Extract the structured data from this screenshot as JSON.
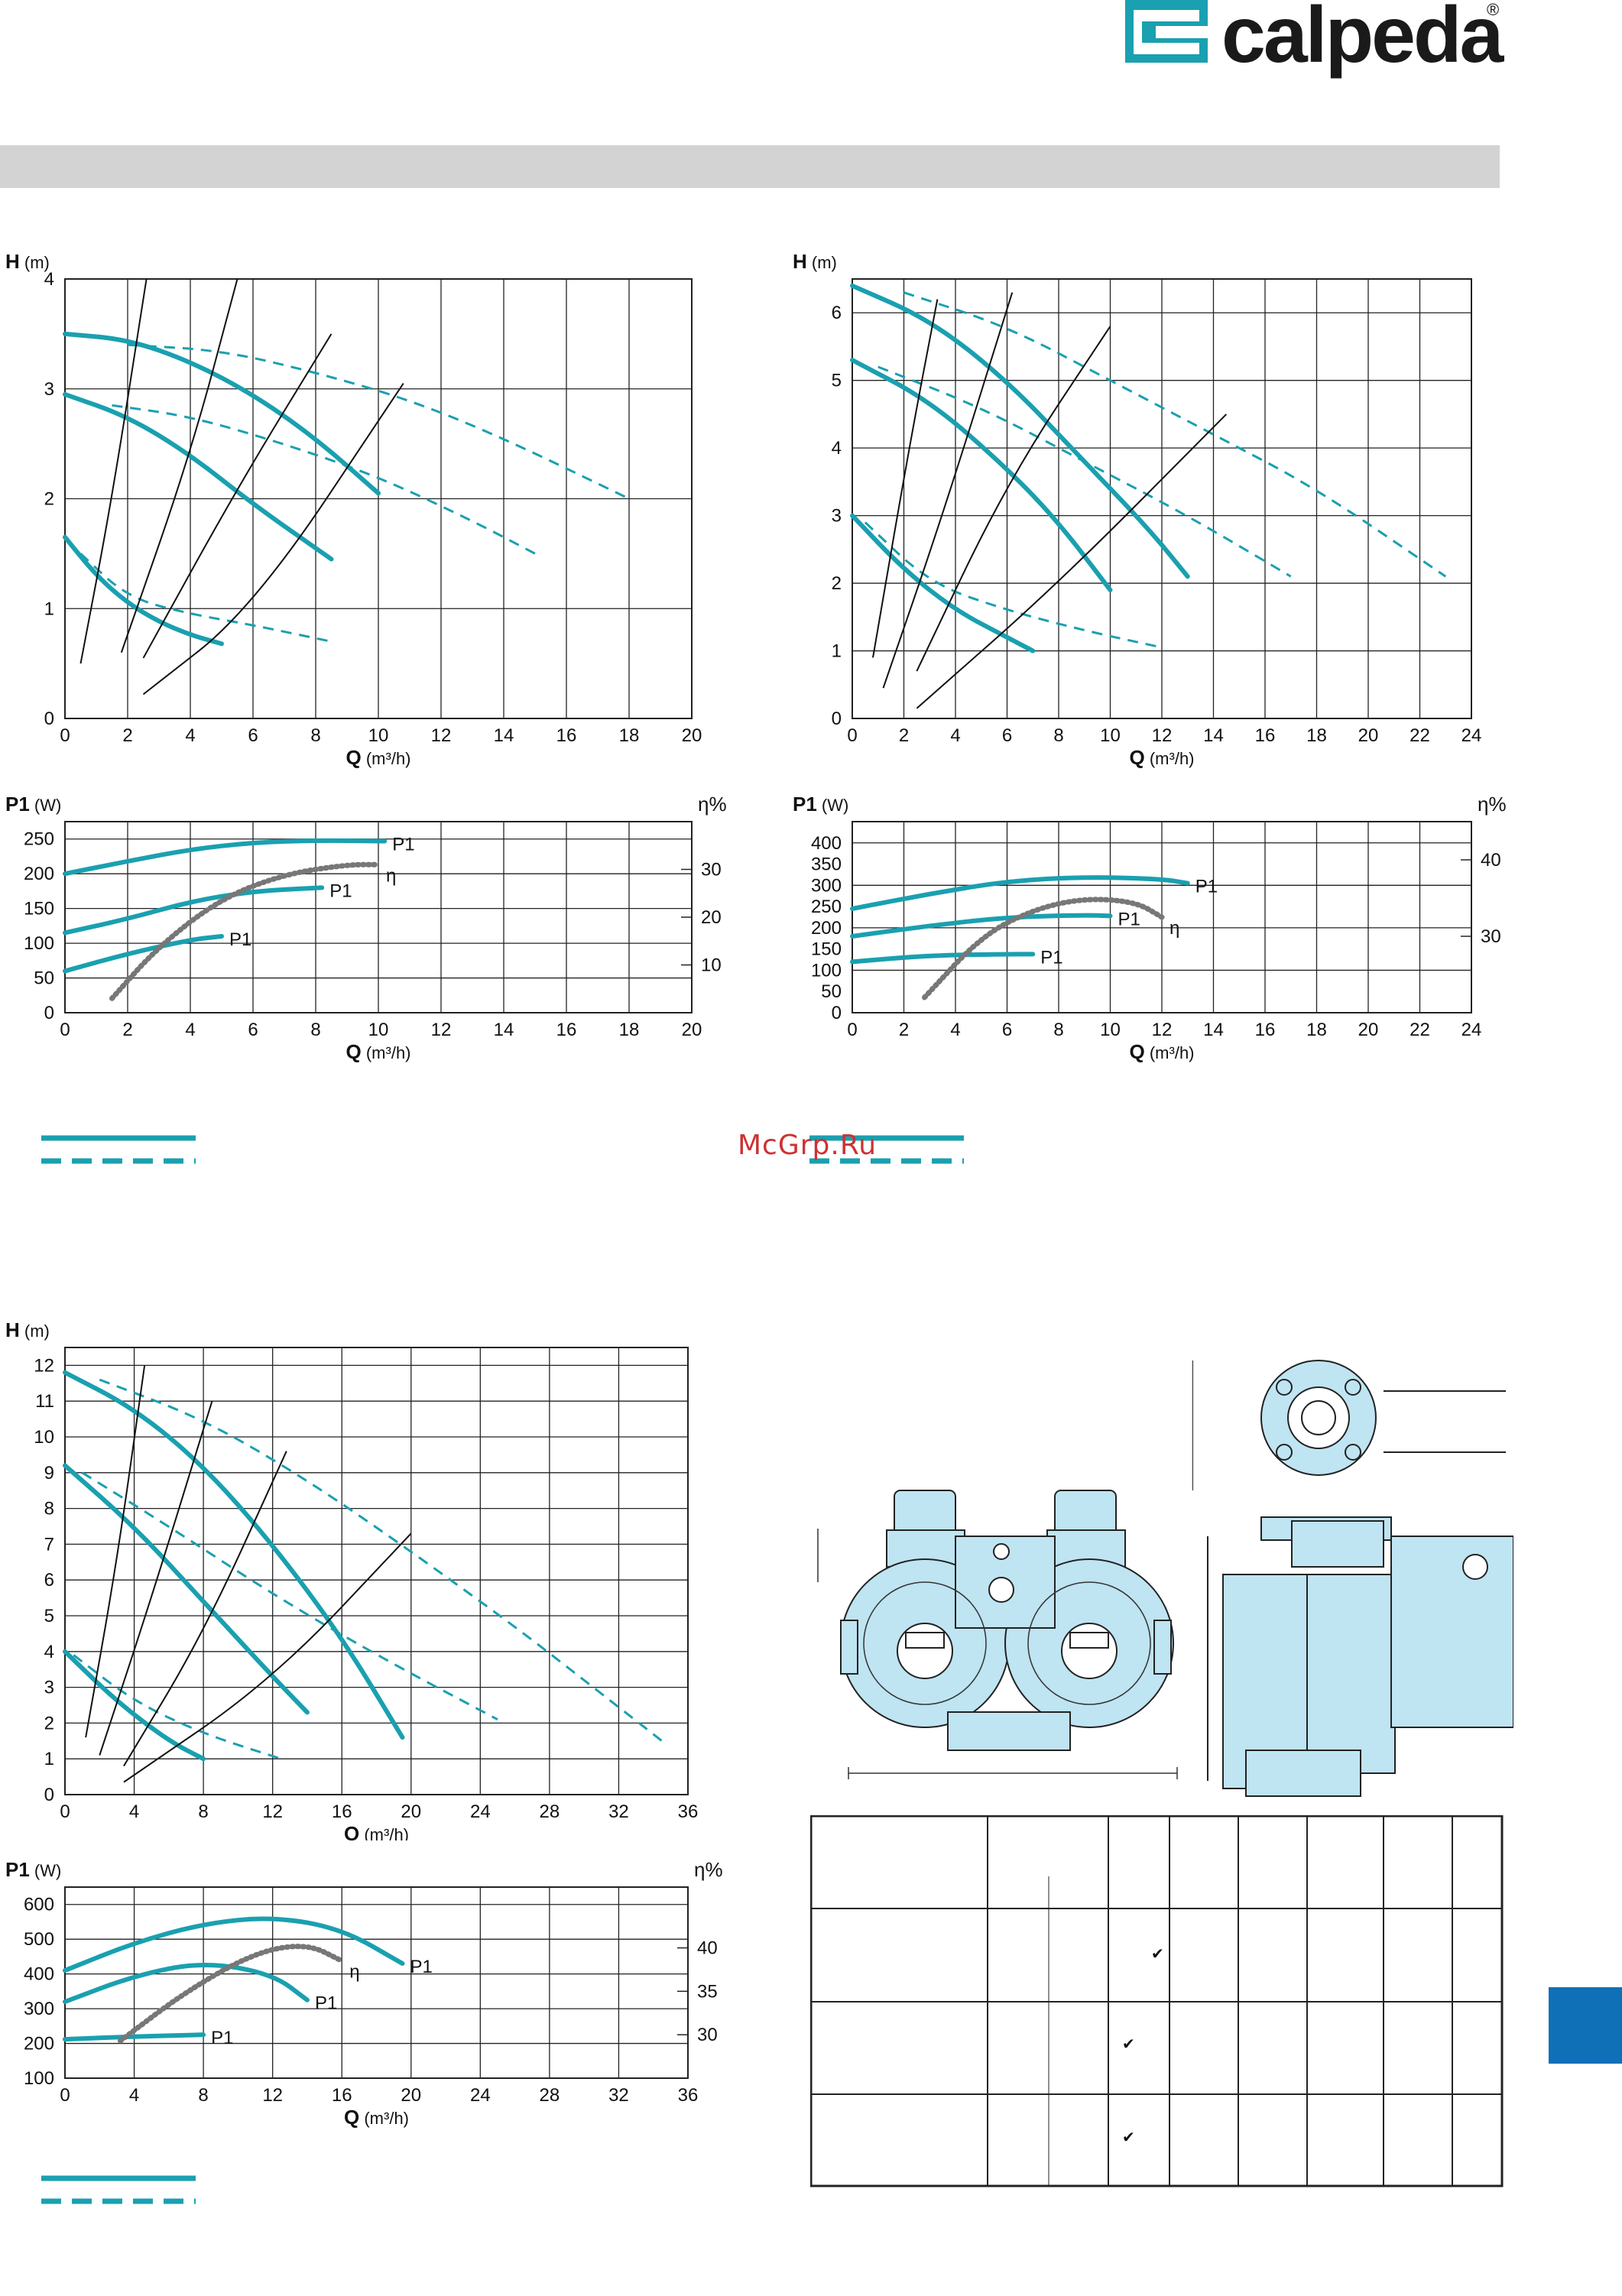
{
  "brand": {
    "name": "calpeda",
    "registered": "®"
  },
  "watermark": "McGrp.Ru",
  "colors": {
    "curve": "#1aa0b0",
    "grid": "#222222",
    "efficiency": "#777777",
    "band": "#d3d3d3",
    "tab": "#0f70b7"
  },
  "chart_data": [
    {
      "type": "line",
      "ylabel_main": "H",
      "ylabel_unit": "(m)",
      "xlabel_main": "Q",
      "xlabel_unit": "(m³/h)",
      "xticks": [
        "0",
        "2",
        "4",
        "6",
        "8",
        "10",
        "12",
        "14",
        "16",
        "18",
        "20"
      ],
      "yticks": [
        "0",
        "1",
        "2",
        "3",
        "4"
      ],
      "xlim": [
        0,
        20
      ],
      "ylim": [
        0,
        4
      ],
      "series": [
        {
          "style": "solid",
          "x": [
            0,
            2,
            4,
            6,
            8.5
          ],
          "y": [
            2.95,
            2.75,
            2.4,
            1.95,
            1.45
          ]
        },
        {
          "style": "solid",
          "x": [
            0,
            2,
            4,
            6,
            8,
            10
          ],
          "y": [
            3.5,
            3.45,
            3.25,
            2.95,
            2.55,
            2.05
          ]
        },
        {
          "style": "solid",
          "x": [
            0,
            1,
            2,
            3,
            4,
            5
          ],
          "y": [
            1.65,
            1.3,
            1.05,
            0.88,
            0.76,
            0.68
          ]
        },
        {
          "style": "dashed",
          "x": [
            1.5,
            4,
            7,
            10,
            13,
            15
          ],
          "y": [
            2.85,
            2.75,
            2.5,
            2.2,
            1.8,
            1.5
          ]
        },
        {
          "style": "dashed",
          "x": [
            2,
            5,
            8,
            11,
            14,
            18
          ],
          "y": [
            3.4,
            3.35,
            3.15,
            2.9,
            2.55,
            2.0
          ]
        },
        {
          "style": "dashed",
          "x": [
            0.5,
            2,
            4,
            6,
            8.5
          ],
          "y": [
            1.5,
            1.1,
            0.95,
            0.85,
            0.7
          ]
        },
        {
          "style": "system",
          "x": [
            0.5,
            1.5,
            2.6
          ],
          "y": [
            0.5,
            2.0,
            4.0
          ]
        },
        {
          "style": "system",
          "x": [
            1.8,
            4,
            5.5
          ],
          "y": [
            0.6,
            2.4,
            4.0
          ]
        },
        {
          "style": "system",
          "x": [
            2.5,
            5.5,
            8.5
          ],
          "y": [
            0.55,
            2.1,
            3.5
          ]
        },
        {
          "style": "system",
          "x": [
            2.5,
            6,
            10.8
          ],
          "y": [
            0.22,
            1.0,
            3.05
          ]
        }
      ]
    },
    {
      "type": "line",
      "ylabel_main": "P1",
      "ylabel_unit": "(W)",
      "y2label": "η%",
      "xlabel_main": "Q",
      "xlabel_unit": "(m³/h)",
      "xticks": [
        "0",
        "2",
        "4",
        "6",
        "8",
        "10",
        "12",
        "14",
        "16",
        "18",
        "20"
      ],
      "yticks": [
        "0",
        "50",
        "100",
        "150",
        "200",
        "250"
      ],
      "y2ticks": [
        "10",
        "20",
        "30"
      ],
      "xlim": [
        0,
        20
      ],
      "ylim": [
        0,
        275
      ],
      "y2lim": [
        0,
        40
      ],
      "series_labels": [
        "P1",
        "P1",
        "P1",
        "η"
      ],
      "series": [
        {
          "style": "solid",
          "label": "P1",
          "x": [
            0,
            2,
            4,
            6,
            8,
            10,
            10.2
          ],
          "y": [
            200,
            218,
            235,
            245,
            248,
            247,
            247
          ]
        },
        {
          "style": "solid",
          "label": "P1",
          "x": [
            0,
            2,
            4,
            6,
            8.2
          ],
          "y": [
            115,
            135,
            160,
            175,
            180
          ]
        },
        {
          "style": "solid",
          "label": "P1",
          "x": [
            0,
            2,
            4,
            5
          ],
          "y": [
            60,
            85,
            105,
            110
          ]
        },
        {
          "style": "dotted",
          "label": "η",
          "axis": "y2",
          "x": [
            1.5,
            3,
            5,
            7,
            9,
            10
          ],
          "y": [
            3,
            14,
            24,
            29,
            31,
            31
          ]
        }
      ]
    },
    {
      "type": "line",
      "ylabel_main": "H",
      "ylabel_unit": "(m)",
      "xlabel_main": "Q",
      "xlabel_unit": "(m³/h)",
      "xticks": [
        "0",
        "2",
        "4",
        "6",
        "8",
        "10",
        "12",
        "14",
        "16",
        "18",
        "20",
        "22",
        "24"
      ],
      "yticks": [
        "0",
        "1",
        "2",
        "3",
        "4",
        "5",
        "6"
      ],
      "xlim": [
        0,
        24
      ],
      "ylim": [
        0,
        6.5
      ],
      "series": [
        {
          "style": "solid",
          "x": [
            0,
            3,
            6,
            9,
            11.5,
            13
          ],
          "y": [
            6.4,
            5.9,
            5.0,
            3.8,
            2.8,
            2.1
          ]
        },
        {
          "style": "solid",
          "x": [
            0,
            3,
            6,
            8,
            10
          ],
          "y": [
            5.3,
            4.7,
            3.7,
            2.9,
            1.9
          ]
        },
        {
          "style": "solid",
          "x": [
            0,
            2,
            4,
            6,
            7
          ],
          "y": [
            3.0,
            2.2,
            1.6,
            1.2,
            1.0
          ]
        },
        {
          "style": "dashed",
          "x": [
            2,
            6,
            10,
            14,
            18,
            23
          ],
          "y": [
            6.3,
            5.8,
            5.0,
            4.2,
            3.4,
            2.1
          ]
        },
        {
          "style": "dashed",
          "x": [
            1,
            5,
            9,
            13,
            17
          ],
          "y": [
            5.2,
            4.6,
            3.8,
            3.0,
            2.1
          ]
        },
        {
          "style": "dashed",
          "x": [
            0.5,
            3,
            6,
            9,
            12
          ],
          "y": [
            2.9,
            2.0,
            1.6,
            1.3,
            1.05
          ]
        },
        {
          "style": "system",
          "x": [
            0.8,
            2.2,
            3.3
          ],
          "y": [
            0.9,
            4.0,
            6.2
          ]
        },
        {
          "style": "system",
          "x": [
            1.2,
            3.5,
            6.2
          ],
          "y": [
            0.45,
            3.0,
            6.3
          ]
        },
        {
          "style": "system",
          "x": [
            2.5,
            6,
            10
          ],
          "y": [
            0.7,
            3.5,
            5.8
          ]
        },
        {
          "style": "system",
          "x": [
            2.5,
            8,
            14.5
          ],
          "y": [
            0.15,
            2.0,
            4.5
          ]
        }
      ]
    },
    {
      "type": "line",
      "ylabel_main": "P1",
      "ylabel_unit": "(W)",
      "y2label": "η%",
      "xlabel_main": "Q",
      "xlabel_unit": "(m³/h)",
      "xticks": [
        "0",
        "2",
        "4",
        "6",
        "8",
        "10",
        "12",
        "14",
        "16",
        "18",
        "20",
        "22",
        "24"
      ],
      "yticks": [
        "0",
        "100",
        "200",
        "300",
        "400"
      ],
      "mid_ticks": [
        "50",
        "150",
        "250",
        "350"
      ],
      "y2ticks": [
        "30",
        "40"
      ],
      "xlim": [
        0,
        24
      ],
      "ylim": [
        0,
        450
      ],
      "y2lim": [
        20,
        45
      ],
      "series_labels": [
        "P1",
        "P1",
        "P1",
        "η"
      ],
      "series": [
        {
          "style": "solid",
          "label": "P1",
          "x": [
            0,
            3,
            6,
            9,
            12,
            13
          ],
          "y": [
            245,
            280,
            310,
            320,
            315,
            305
          ]
        },
        {
          "style": "solid",
          "label": "P1",
          "x": [
            0,
            3,
            6,
            9,
            10
          ],
          "y": [
            180,
            205,
            225,
            230,
            228
          ]
        },
        {
          "style": "solid",
          "label": "P1",
          "x": [
            0,
            3,
            6,
            7
          ],
          "y": [
            120,
            135,
            138,
            138
          ]
        },
        {
          "style": "dotted",
          "label": "η",
          "axis": "y2",
          "x": [
            2.8,
            5,
            7,
            9,
            11,
            12
          ],
          "y": [
            22,
            30,
            33.5,
            35,
            34.5,
            32.5
          ]
        }
      ]
    },
    {
      "type": "line",
      "ylabel_main": "H",
      "ylabel_unit": "(m)",
      "xlabel_main": "Q",
      "xlabel_unit": "(m³/h)",
      "xticks": [
        "0",
        "4",
        "8",
        "12",
        "16",
        "20",
        "24",
        "28",
        "32",
        "36"
      ],
      "yticks": [
        "0",
        "1",
        "2",
        "3",
        "4",
        "5",
        "6",
        "7",
        "8",
        "9",
        "10",
        "11",
        "12"
      ],
      "xlim": [
        0,
        36
      ],
      "ylim": [
        0,
        12.5
      ],
      "series": [
        {
          "style": "solid",
          "x": [
            0,
            4,
            8,
            12,
            16,
            19.5
          ],
          "y": [
            11.8,
            10.8,
            9.2,
            7.0,
            4.4,
            1.6
          ]
        },
        {
          "style": "solid",
          "x": [
            0,
            4,
            8,
            12,
            14
          ],
          "y": [
            9.2,
            7.5,
            5.4,
            3.3,
            2.3
          ]
        },
        {
          "style": "solid",
          "x": [
            0,
            3,
            6,
            8
          ],
          "y": [
            4.0,
            2.6,
            1.5,
            1.0
          ]
        },
        {
          "style": "dashed",
          "x": [
            2,
            8,
            14,
            20,
            26,
            30,
            34.5
          ],
          "y": [
            11.6,
            10.5,
            8.8,
            6.8,
            4.7,
            3.2,
            1.5
          ]
        },
        {
          "style": "dashed",
          "x": [
            1,
            6,
            12,
            18,
            25
          ],
          "y": [
            9.0,
            7.5,
            5.6,
            3.9,
            2.1
          ]
        },
        {
          "style": "dashed",
          "x": [
            0.5,
            4,
            8,
            12.5
          ],
          "y": [
            3.9,
            2.6,
            1.7,
            1.0
          ]
        },
        {
          "style": "system",
          "x": [
            1.2,
            3,
            4.6
          ],
          "y": [
            1.6,
            6.5,
            12.0
          ]
        },
        {
          "style": "system",
          "x": [
            2,
            5,
            8.5
          ],
          "y": [
            1.1,
            5.5,
            11.0
          ]
        },
        {
          "style": "system",
          "x": [
            3.4,
            8,
            12.8
          ],
          "y": [
            0.8,
            4.5,
            9.6
          ]
        },
        {
          "style": "system",
          "x": [
            3.4,
            12,
            20
          ],
          "y": [
            0.35,
            3.2,
            7.3
          ]
        }
      ]
    },
    {
      "type": "line",
      "ylabel_main": "P1",
      "ylabel_unit": "(W)",
      "y2label": "η%",
      "xlabel_main": "Q",
      "xlabel_unit": "(m³/h)",
      "xticks": [
        "0",
        "4",
        "8",
        "12",
        "16",
        "20",
        "24",
        "28",
        "32",
        "36"
      ],
      "yticks": [
        "100",
        "200",
        "300",
        "400",
        "500",
        "600"
      ],
      "y2ticks": [
        "30",
        "35",
        "40"
      ],
      "xlim": [
        0,
        36
      ],
      "ylim": [
        100,
        650
      ],
      "y2lim": [
        25,
        47
      ],
      "series_labels": [
        "P1",
        "P1",
        "P1",
        "η"
      ],
      "series": [
        {
          "style": "solid",
          "label": "P1",
          "x": [
            0,
            4,
            8,
            12,
            16,
            19.5
          ],
          "y": [
            410,
            490,
            545,
            565,
            530,
            430
          ]
        },
        {
          "style": "solid",
          "label": "P1",
          "x": [
            0,
            4,
            8,
            12,
            14
          ],
          "y": [
            320,
            395,
            435,
            400,
            325
          ]
        },
        {
          "style": "solid",
          "label": "P1",
          "x": [
            0,
            4,
            8
          ],
          "y": [
            212,
            220,
            225
          ]
        },
        {
          "style": "dotted",
          "label": "η",
          "axis": "y2",
          "x": [
            3.2,
            7,
            11,
            14,
            16
          ],
          "y": [
            29.3,
            35,
            39.5,
            40.5,
            38.5
          ]
        }
      ]
    }
  ],
  "table": {
    "rows": 4,
    "checkmarks": [
      "✔",
      "✔",
      "✔"
    ]
  }
}
